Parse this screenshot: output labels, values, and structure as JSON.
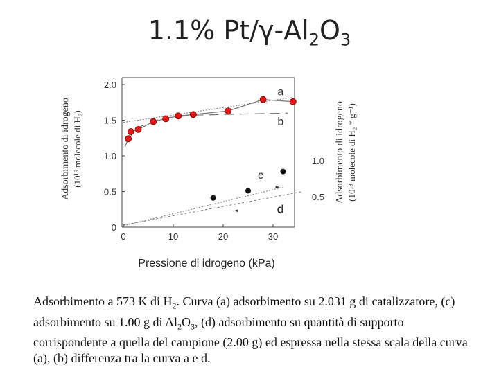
{
  "title": {
    "prefix": "1.1% Pt/γ-Al",
    "sub1": "2",
    "mid": "O",
    "sub2": "3"
  },
  "caption": {
    "p1": "Adsorbimento a 573 K di H",
    "s1": "2",
    "p2": ". Curva (a) adsorbimento su 2.031 g di catalizzatore,  (c) adsorbimento su 1.00 g di Al",
    "s2": "2",
    "p3": "O",
    "s3": "3",
    "p4": ", (d) adsorbimento su quantità di supporto corrispondente a quella del campione (2.00 g) ed espressa nella stessa scala della curva (a), (b) differenza tra la curva a e d."
  },
  "chart_data": {
    "type": "scatter",
    "xlabel": "Pressione di idrogeno (kPa)",
    "ylabel_left": [
      "Adsorbimento di idrogeno",
      "(10¹⁹  molecole di H₂)"
    ],
    "ylabel_right": [
      "Adsorbimento di idrogeno",
      "(10¹⁸  molecole di H₂ * g⁻¹)"
    ],
    "x_ticks": [
      "0",
      "10",
      "20",
      "30"
    ],
    "y_ticks_left": [
      "0",
      "0.5",
      "1.0",
      "1.5",
      "2.0"
    ],
    "y_ticks_right": [
      "0.5",
      "1.0"
    ],
    "xlim": [
      0,
      40
    ],
    "ylim_left": [
      0,
      2.0
    ],
    "colors": {
      "series_a": "#e01818",
      "series_c": "#111111",
      "axis": "#444444",
      "line": "#777777"
    },
    "series": [
      {
        "name": "a",
        "marker": "red-circle",
        "x": [
          1,
          1.5,
          3,
          6,
          8.5,
          11,
          14,
          21,
          28,
          34
        ],
        "y": [
          1.24,
          1.34,
          1.37,
          1.48,
          1.52,
          1.56,
          1.58,
          1.63,
          1.79,
          1.76
        ]
      },
      {
        "name": "b",
        "marker": "dashed-line",
        "x": [
          0.5,
          3,
          8,
          14,
          20,
          26,
          33
        ],
        "y": [
          1.2,
          1.4,
          1.53,
          1.57,
          1.58,
          1.59,
          1.6
        ]
      },
      {
        "name": "c",
        "marker": "black-circle",
        "x": [
          18,
          25,
          32
        ],
        "y": [
          0.41,
          0.51,
          0.78
        ]
      },
      {
        "name": "d",
        "marker": "dashed-line",
        "x": [
          0,
          36
        ],
        "y": [
          0.03,
          0.5
        ]
      }
    ],
    "labels": {
      "a": "a",
      "b": "b",
      "c": "c",
      "d": "d"
    }
  }
}
